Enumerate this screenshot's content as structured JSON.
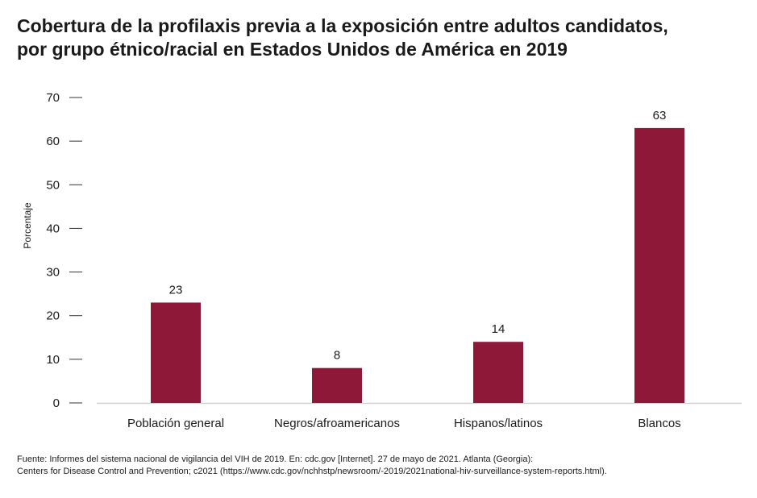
{
  "title": {
    "line1": "Cobertura de la profilaxis previa a la exposición entre adultos candidatos,",
    "line2": "por grupo étnico/racial en Estados Unidos de América en 2019"
  },
  "chart_data": {
    "type": "bar",
    "categories": [
      "Población general",
      "Negros/afroamericanos",
      "Hispanos/latinos",
      "Blancos"
    ],
    "values": [
      23,
      8,
      14,
      63
    ],
    "data_labels": [
      "23",
      "8",
      "14",
      "63"
    ],
    "ylabel": "Porcentaje",
    "xlabel": "",
    "ylim": [
      0,
      70
    ],
    "yticks": [
      0,
      10,
      20,
      30,
      40,
      50,
      60,
      70
    ],
    "grid": false,
    "legend": "none",
    "bar_color": "#8e1838"
  },
  "source": {
    "line1": "Fuente: Informes del sistema nacional de vigilancia del VIH de 2019. En: cdc.gov [Internet]. 27 de mayo de 2021. Atlanta (Georgia):",
    "line2": "Centers for Disease Control and Prevention; c2021 (https://www.cdc.gov/nchhstp/newsroom/-2019/2021national-hiv-surveillance-system-reports.html)."
  }
}
